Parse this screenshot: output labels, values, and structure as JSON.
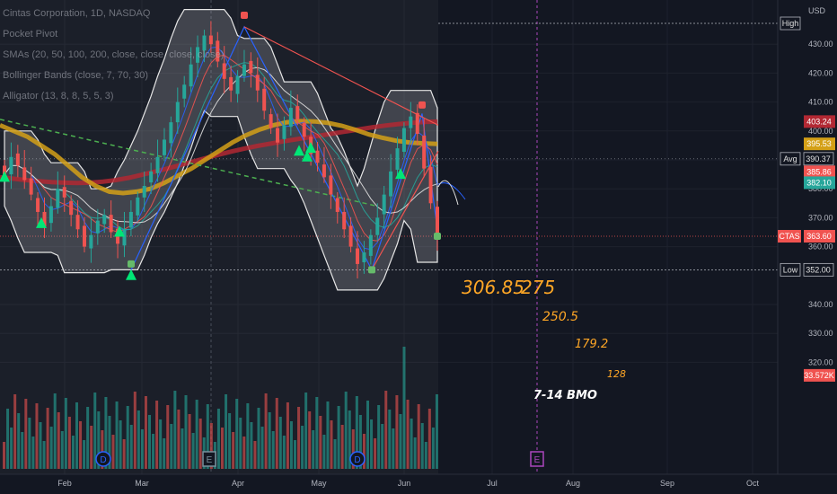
{
  "chart_data": {
    "type": "candlestick",
    "title": "Cintas Corporation, 1D, NASDAQ",
    "legend": [
      "Pocket Pivot",
      "SMAs (20, 50, 100, 200, close, close, close, close)",
      "Bollinger Bands (close, 7, 70, 30)",
      "Alligator (13, 8, 8, 5, 5, 3)"
    ],
    "currency": "USD",
    "x_tick_labels": [
      "Feb",
      "Mar",
      "Apr",
      "May",
      "Jun",
      "Jul",
      "Aug",
      "Sep",
      "Oct"
    ],
    "y_tick_values": [
      320,
      330,
      340,
      360,
      370,
      380,
      390,
      400,
      410,
      420,
      430
    ],
    "ylim": [
      314,
      442
    ],
    "price_tags": [
      {
        "label": "High",
        "value": "",
        "price": 437.2,
        "kind": "outline"
      },
      {
        "label": "",
        "value": "403.24",
        "price": 403.24,
        "color": "#b22833"
      },
      {
        "label": "",
        "value": "395.53",
        "price": 395.53,
        "color": "#d4a017"
      },
      {
        "label": "Avg",
        "value": "390.37",
        "price": 390.37,
        "kind": "outline"
      },
      {
        "label": "",
        "value": "385.86",
        "price": 385.86,
        "color": "#f05350"
      },
      {
        "label": "",
        "value": "382.10",
        "price": 382.1,
        "color": "#26a69a"
      },
      {
        "label": "CTAS",
        "value": "363.60",
        "price": 363.6,
        "color": "#f05350"
      },
      {
        "label": "Low",
        "value": "352.00",
        "price": 352.0,
        "kind": "outline"
      },
      {
        "label": "",
        "value": "33.572K",
        "price": 315.5,
        "color": "#f05350"
      }
    ],
    "annotations": [
      "306.85",
      "275",
      "250.5",
      "179.2",
      "128",
      "7-14 BMO"
    ],
    "events": [
      {
        "label": "D",
        "month": "Feb"
      },
      {
        "label": "E",
        "month": "Mar"
      },
      {
        "label": "D",
        "month": "May"
      },
      {
        "label": "E",
        "month": "Jul"
      }
    ],
    "series": [
      {
        "name": "Cintas Corporation",
        "kind": "candles",
        "close": [
          385,
          391,
          388,
          383,
          378,
          372,
          367,
          374,
          380,
          377,
          371,
          366,
          360,
          364,
          369,
          371,
          365,
          361,
          366,
          372,
          377,
          381,
          386,
          391,
          397,
          403,
          410,
          416,
          423,
          429,
          433,
          430,
          424,
          418,
          414,
          419,
          423,
          420,
          414,
          407,
          401,
          396,
          402,
          408,
          404,
          398,
          392,
          389,
          384,
          378,
          372,
          366,
          360,
          354,
          358,
          364,
          370,
          378,
          386,
          394,
          401,
          405,
          399,
          387,
          375,
          363.6
        ]
      },
      {
        "name": "",
        "kind": "sma",
        "color": "#b22833",
        "values": [
          384,
          383.5,
          383,
          382.6,
          382.3,
          382.1,
          382,
          382.1,
          382.5,
          383,
          383.8,
          384.8,
          385.9,
          387,
          388.2,
          389.4,
          390.6,
          391.8,
          392.9,
          393.9,
          394.8,
          395.6,
          396.4,
          397.1,
          397.8,
          398.5,
          399.2,
          399.9,
          400.6,
          401.3,
          401.9,
          402.4,
          402.8,
          403.1,
          403.24
        ]
      },
      {
        "name": "",
        "kind": "sma",
        "color": "#d4a017",
        "values": [
          402,
          400,
          398,
          395,
          392,
          388,
          384,
          381,
          379,
          378.5,
          379,
          380,
          382,
          384.5,
          387,
          390,
          393,
          396,
          398.5,
          400.5,
          402,
          403,
          403.4,
          403.3,
          402.8,
          401.8,
          400.4,
          398.8,
          397.6,
          396.6,
          396,
          395.7,
          395.53
        ]
      },
      {
        "name": "",
        "kind": "trend",
        "color": "#4caf50",
        "values": [
          404,
          398,
          392,
          386,
          380,
          374
        ]
      }
    ]
  }
}
